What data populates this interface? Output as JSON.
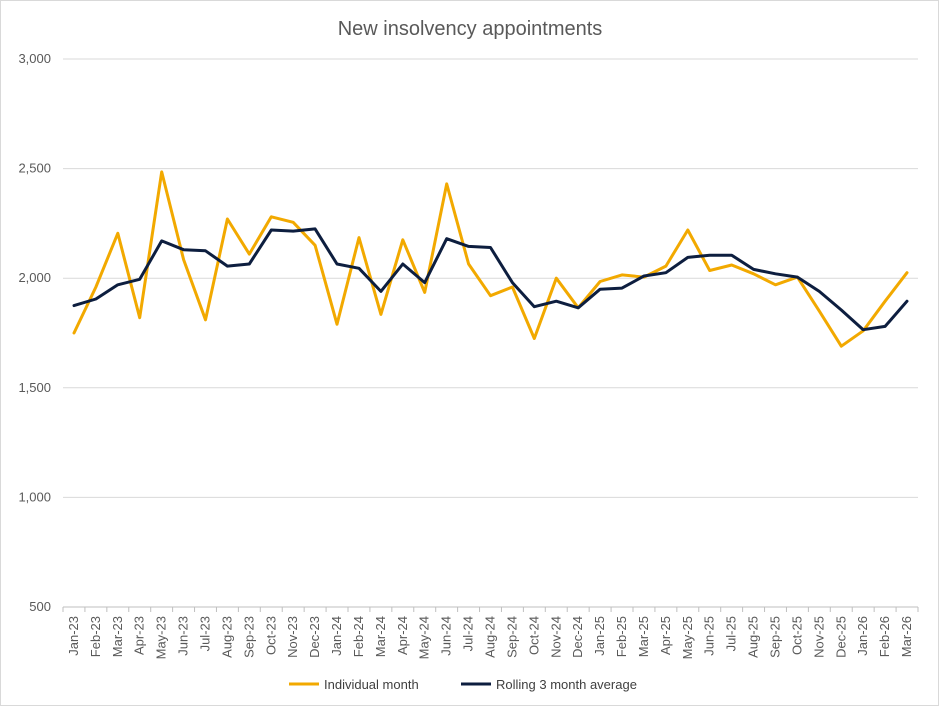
{
  "chart_data": {
    "type": "line",
    "title": "New insolvency appointments",
    "xlabel": "",
    "ylabel": "",
    "ylim": [
      500,
      3000
    ],
    "yticks": [
      "500",
      "1,000",
      "1,500",
      "2,000",
      "2,500",
      "3,000"
    ],
    "ytick_values": [
      500,
      1000,
      1500,
      2000,
      2500,
      3000
    ],
    "grid": true,
    "legend_position": "bottom",
    "categories": [
      "Jan-23",
      "Feb-23",
      "Mar-23",
      "Apr-23",
      "May-23",
      "Jun-23",
      "Jul-23",
      "Aug-23",
      "Sep-23",
      "Oct-23",
      "Nov-23",
      "Dec-23",
      "Jan-24",
      "Feb-24",
      "Mar-24",
      "Apr-24",
      "May-24",
      "Jun-24",
      "Jul-24",
      "Aug-24",
      "Sep-24",
      "Oct-24",
      "Nov-24",
      "Dec-24",
      "Jan-25",
      "Feb-25",
      "Mar-25",
      "Apr-25",
      "May-25",
      "Jun-25",
      "Jul-25",
      "Aug-25",
      "Sep-25",
      "Oct-25",
      "Nov-25",
      "Dec-25",
      "Jan-26",
      "Feb-26",
      "Mar-26"
    ],
    "series": [
      {
        "name": "Individual month",
        "color": "#f2a900",
        "values": [
          1750,
          1960,
          2205,
          1820,
          2485,
          2085,
          1810,
          2270,
          2110,
          2280,
          2255,
          2150,
          1790,
          2185,
          1835,
          2175,
          1935,
          2430,
          2065,
          1920,
          1960,
          1725,
          2000,
          1865,
          1985,
          2015,
          2005,
          2055,
          2220,
          2035,
          2060,
          2020,
          1970,
          2005,
          1850,
          1690,
          1760,
          1895,
          2025
        ]
      },
      {
        "name": "Rolling 3 month average",
        "color": "#0d1e3f",
        "values": [
          1875,
          1905,
          1970,
          1995,
          2170,
          2130,
          2125,
          2055,
          2065,
          2220,
          2215,
          2225,
          2065,
          2045,
          1940,
          2065,
          1980,
          2180,
          2145,
          2140,
          1980,
          1870,
          1895,
          1865,
          1950,
          1955,
          2010,
          2025,
          2095,
          2105,
          2105,
          2040,
          2020,
          2005,
          1940,
          1855,
          1765,
          1780,
          1895
        ]
      }
    ]
  }
}
